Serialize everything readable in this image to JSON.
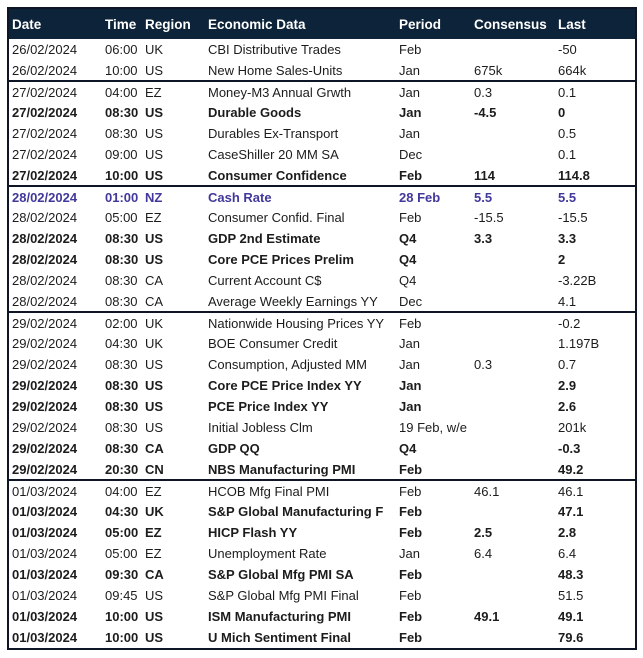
{
  "colors": {
    "header_bg": "#0d2339",
    "header_text": "#ffffff",
    "row_text": "#1c1c1c",
    "highlight_text": "#41389b",
    "border": "#0d1526",
    "row_bg": "#ffffff"
  },
  "table": {
    "columns": [
      {
        "key": "date",
        "label": "Date"
      },
      {
        "key": "time",
        "label": "Time"
      },
      {
        "key": "region",
        "label": "Region"
      },
      {
        "key": "event",
        "label": "Economic Data"
      },
      {
        "key": "period",
        "label": "Period"
      },
      {
        "key": "consensus",
        "label": "Consensus"
      },
      {
        "key": "last",
        "label": "Last"
      }
    ],
    "rows": [
      {
        "date": "26/02/2024",
        "time": "06:00",
        "region": "UK",
        "event": "CBI Distributive Trades",
        "period": "Feb",
        "consensus": "",
        "last": "-50",
        "bold": false,
        "highlight": false,
        "group_start": false
      },
      {
        "date": "26/02/2024",
        "time": "10:00",
        "region": "US",
        "event": "New Home Sales-Units",
        "period": "Jan",
        "consensus": "675k",
        "last": "664k",
        "bold": false,
        "highlight": false,
        "group_start": false
      },
      {
        "date": "27/02/2024",
        "time": "04:00",
        "region": "EZ",
        "event": "Money-M3 Annual Grwth",
        "period": "Jan",
        "consensus": "0.3",
        "last": "0.1",
        "bold": false,
        "highlight": false,
        "group_start": true
      },
      {
        "date": "27/02/2024",
        "time": "08:30",
        "region": "US",
        "event": "Durable Goods",
        "period": "Jan",
        "consensus": "-4.5",
        "last": "0",
        "bold": true,
        "highlight": false,
        "group_start": false
      },
      {
        "date": "27/02/2024",
        "time": "08:30",
        "region": "US",
        "event": "Durables Ex-Transport",
        "period": "Jan",
        "consensus": "",
        "last": "0.5",
        "bold": false,
        "highlight": false,
        "group_start": false
      },
      {
        "date": "27/02/2024",
        "time": "09:00",
        "region": "US",
        "event": "CaseShiller 20 MM SA",
        "period": "Dec",
        "consensus": "",
        "last": "0.1",
        "bold": false,
        "highlight": false,
        "group_start": false
      },
      {
        "date": "27/02/2024",
        "time": "10:00",
        "region": "US",
        "event": "Consumer Confidence",
        "period": "Feb",
        "consensus": "114",
        "last": "114.8",
        "bold": true,
        "highlight": false,
        "group_start": false
      },
      {
        "date": "28/02/2024",
        "time": "01:00",
        "region": "NZ",
        "event": "Cash Rate",
        "period": "28 Feb",
        "consensus": "5.5",
        "last": "5.5",
        "bold": true,
        "highlight": true,
        "group_start": true
      },
      {
        "date": "28/02/2024",
        "time": "05:00",
        "region": "EZ",
        "event": "Consumer Confid. Final",
        "period": "Feb",
        "consensus": "-15.5",
        "last": "-15.5",
        "bold": false,
        "highlight": false,
        "group_start": false
      },
      {
        "date": "28/02/2024",
        "time": "08:30",
        "region": "US",
        "event": "GDP 2nd Estimate",
        "period": "Q4",
        "consensus": "3.3",
        "last": "3.3",
        "bold": true,
        "highlight": false,
        "group_start": false
      },
      {
        "date": "28/02/2024",
        "time": "08:30",
        "region": "US",
        "event": "Core PCE Prices Prelim",
        "period": "Q4",
        "consensus": "",
        "last": "2",
        "bold": true,
        "highlight": false,
        "group_start": false
      },
      {
        "date": "28/02/2024",
        "time": "08:30",
        "region": "CA",
        "event": "Current Account C$",
        "period": "Q4",
        "consensus": "",
        "last": "-3.22B",
        "bold": false,
        "highlight": false,
        "group_start": false
      },
      {
        "date": "28/02/2024",
        "time": "08:30",
        "region": "CA",
        "event": "Average Weekly Earnings YY",
        "period": "Dec",
        "consensus": "",
        "last": "4.1",
        "bold": false,
        "highlight": false,
        "group_start": false
      },
      {
        "date": "29/02/2024",
        "time": "02:00",
        "region": "UK",
        "event": "Nationwide Housing Prices YY",
        "period": "Feb",
        "consensus": "",
        "last": "-0.2",
        "bold": false,
        "highlight": false,
        "group_start": true
      },
      {
        "date": "29/02/2024",
        "time": "04:30",
        "region": "UK",
        "event": "BOE Consumer Credit",
        "period": "Jan",
        "consensus": "",
        "last": "1.197B",
        "bold": false,
        "highlight": false,
        "group_start": false
      },
      {
        "date": "29/02/2024",
        "time": "08:30",
        "region": "US",
        "event": "Consumption, Adjusted MM",
        "period": "Jan",
        "consensus": "0.3",
        "last": "0.7",
        "bold": false,
        "highlight": false,
        "group_start": false
      },
      {
        "date": "29/02/2024",
        "time": "08:30",
        "region": "US",
        "event": "Core PCE Price Index YY",
        "period": "Jan",
        "consensus": "",
        "last": "2.9",
        "bold": true,
        "highlight": false,
        "group_start": false
      },
      {
        "date": "29/02/2024",
        "time": "08:30",
        "region": "US",
        "event": "PCE Price Index YY",
        "period": "Jan",
        "consensus": "",
        "last": "2.6",
        "bold": true,
        "highlight": false,
        "group_start": false
      },
      {
        "date": "29/02/2024",
        "time": "08:30",
        "region": "US",
        "event": "Initial Jobless Clm",
        "period": "19 Feb, w/e",
        "consensus": "",
        "last": "201k",
        "bold": false,
        "highlight": false,
        "group_start": false
      },
      {
        "date": "29/02/2024",
        "time": "08:30",
        "region": "CA",
        "event": "GDP QQ",
        "period": "Q4",
        "consensus": "",
        "last": "-0.3",
        "bold": true,
        "highlight": false,
        "group_start": false
      },
      {
        "date": "29/02/2024",
        "time": "20:30",
        "region": "CN",
        "event": "NBS Manufacturing PMI",
        "period": "Feb",
        "consensus": "",
        "last": "49.2",
        "bold": true,
        "highlight": false,
        "group_start": false
      },
      {
        "date": "01/03/2024",
        "time": "04:00",
        "region": "EZ",
        "event": "HCOB Mfg Final PMI",
        "period": "Feb",
        "consensus": "46.1",
        "last": "46.1",
        "bold": false,
        "highlight": false,
        "group_start": true
      },
      {
        "date": "01/03/2024",
        "time": "04:30",
        "region": "UK",
        "event": "S&P Global Manufacturing F",
        "period": "Feb",
        "consensus": "",
        "last": "47.1",
        "bold": true,
        "highlight": false,
        "group_start": false
      },
      {
        "date": "01/03/2024",
        "time": "05:00",
        "region": "EZ",
        "event": "HICP Flash YY",
        "period": "Feb",
        "consensus": "2.5",
        "last": "2.8",
        "bold": true,
        "highlight": false,
        "group_start": false
      },
      {
        "date": "01/03/2024",
        "time": "05:00",
        "region": "EZ",
        "event": "Unemployment Rate",
        "period": "Jan",
        "consensus": "6.4",
        "last": "6.4",
        "bold": false,
        "highlight": false,
        "group_start": false
      },
      {
        "date": "01/03/2024",
        "time": "09:30",
        "region": "CA",
        "event": "S&P Global Mfg PMI SA",
        "period": "Feb",
        "consensus": "",
        "last": "48.3",
        "bold": true,
        "highlight": false,
        "group_start": false
      },
      {
        "date": "01/03/2024",
        "time": "09:45",
        "region": "US",
        "event": "S&P Global Mfg PMI Final",
        "period": "Feb",
        "consensus": "",
        "last": "51.5",
        "bold": false,
        "highlight": false,
        "group_start": false
      },
      {
        "date": "01/03/2024",
        "time": "10:00",
        "region": "US",
        "event": "ISM Manufacturing PMI",
        "period": "Feb",
        "consensus": "49.1",
        "last": "49.1",
        "bold": true,
        "highlight": false,
        "group_start": false
      },
      {
        "date": "01/03/2024",
        "time": "10:00",
        "region": "US",
        "event": "U Mich Sentiment Final",
        "period": "Feb",
        "consensus": "",
        "last": "79.6",
        "bold": true,
        "highlight": false,
        "group_start": false
      }
    ]
  }
}
